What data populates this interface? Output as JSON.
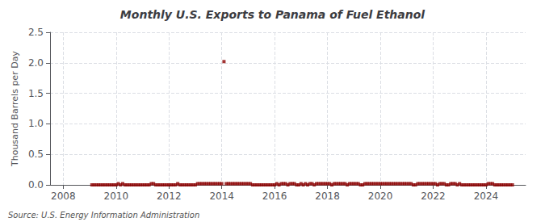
{
  "chart_data": {
    "type": "scatter",
    "title": "Monthly U.S. Exports to Panama of Fuel Ethanol",
    "ylabel": "Thousand Barrels per Day",
    "annotations": [
      "Source: U.S. Energy Information Administration"
    ],
    "color": "#8b0000",
    "marker": "square",
    "grid": true,
    "xlim": [
      2007.5,
      2025.5
    ],
    "xticks": [
      2008,
      2010,
      2012,
      2014,
      2016,
      2018,
      2020,
      2022,
      2024
    ],
    "ylim": [
      0,
      2.5
    ],
    "yticks": [
      {
        "value": 0.0,
        "label": "0.0"
      },
      0.5,
      {
        "value": 1.0,
        "label": "1.0"
      },
      1.5,
      {
        "value": 2.0,
        "label": "2.0"
      },
      2.5
    ],
    "x": [
      2009.083,
      2009.167,
      2009.25,
      2009.333,
      2009.417,
      2009.5,
      2009.583,
      2009.667,
      2009.75,
      2009.833,
      2009.917,
      2010.0,
      2010.083,
      2010.167,
      2010.25,
      2010.333,
      2010.417,
      2010.5,
      2010.583,
      2010.667,
      2010.75,
      2010.833,
      2010.917,
      2011.0,
      2011.083,
      2011.167,
      2011.25,
      2011.333,
      2011.417,
      2011.5,
      2011.583,
      2011.667,
      2011.75,
      2011.833,
      2011.917,
      2012.0,
      2012.083,
      2012.167,
      2012.25,
      2012.333,
      2012.417,
      2012.5,
      2012.583,
      2012.667,
      2012.75,
      2012.833,
      2012.917,
      2013.0,
      2013.083,
      2013.167,
      2013.25,
      2013.333,
      2013.417,
      2013.5,
      2013.583,
      2013.667,
      2013.75,
      2013.833,
      2013.917,
      2014.0,
      2014.083,
      2014.167,
      2014.25,
      2014.333,
      2014.417,
      2014.5,
      2014.583,
      2014.667,
      2014.75,
      2014.833,
      2014.917,
      2015.0,
      2015.083,
      2015.167,
      2015.25,
      2015.333,
      2015.417,
      2015.5,
      2015.583,
      2015.667,
      2015.75,
      2015.833,
      2015.917,
      2016.0,
      2016.083,
      2016.167,
      2016.25,
      2016.333,
      2016.417,
      2016.5,
      2016.583,
      2016.667,
      2016.75,
      2016.833,
      2016.917,
      2017.0,
      2017.083,
      2017.167,
      2017.25,
      2017.333,
      2017.417,
      2017.5,
      2017.583,
      2017.667,
      2017.75,
      2017.833,
      2017.917,
      2018.0,
      2018.083,
      2018.167,
      2018.25,
      2018.333,
      2018.417,
      2018.5,
      2018.583,
      2018.667,
      2018.75,
      2018.833,
      2018.917,
      2019.0,
      2019.083,
      2019.167,
      2019.25,
      2019.333,
      2019.417,
      2019.5,
      2019.583,
      2019.667,
      2019.75,
      2019.833,
      2019.917,
      2020.0,
      2020.083,
      2020.167,
      2020.25,
      2020.333,
      2020.417,
      2020.5,
      2020.583,
      2020.667,
      2020.75,
      2020.833,
      2020.917,
      2021.0,
      2021.083,
      2021.167,
      2021.25,
      2021.333,
      2021.417,
      2021.5,
      2021.583,
      2021.667,
      2021.75,
      2021.833,
      2021.917,
      2022.0,
      2022.083,
      2022.167,
      2022.25,
      2022.333,
      2022.417,
      2022.5,
      2022.583,
      2022.667,
      2022.75,
      2022.833,
      2022.917,
      2023.0,
      2023.083,
      2023.167,
      2023.25,
      2023.333,
      2023.417,
      2023.5,
      2023.583,
      2023.667,
      2023.75,
      2023.833,
      2023.917,
      2024.0,
      2024.083,
      2024.167,
      2024.25,
      2024.333,
      2024.417,
      2024.5,
      2024.583,
      2024.667,
      2024.75,
      2024.833,
      2024.917,
      2025.0
    ],
    "values": [
      0.0,
      0.0,
      0.0,
      0.0,
      0.0,
      0.0,
      0.0,
      0.0,
      0.0,
      0.0,
      0.0,
      0.0,
      0.02,
      0.0,
      0.02,
      0.0,
      0.0,
      0.0,
      0.0,
      0.0,
      0.0,
      0.0,
      0.0,
      0.0,
      0.0,
      0.0,
      0.0,
      0.02,
      0.02,
      0.0,
      0.0,
      0.0,
      0.0,
      0.0,
      0.0,
      0.0,
      0.0,
      0.0,
      0.0,
      0.02,
      0.0,
      0.0,
      0.0,
      0.0,
      0.0,
      0.0,
      0.0,
      0.0,
      0.02,
      0.02,
      0.02,
      0.02,
      0.02,
      0.02,
      0.02,
      0.02,
      0.02,
      0.02,
      0.02,
      0.02,
      2.02,
      0.02,
      0.02,
      0.02,
      0.02,
      0.02,
      0.02,
      0.02,
      0.02,
      0.02,
      0.02,
      0.02,
      0.02,
      0.0,
      0.0,
      0.0,
      0.0,
      0.0,
      0.0,
      0.0,
      0.0,
      0.0,
      0.0,
      0.0,
      0.02,
      0.0,
      0.02,
      0.02,
      0.02,
      0.0,
      0.02,
      0.02,
      0.02,
      0.0,
      0.0,
      0.02,
      0.0,
      0.02,
      0.0,
      0.02,
      0.02,
      0.0,
      0.02,
      0.02,
      0.02,
      0.02,
      0.02,
      0.02,
      0.02,
      0.0,
      0.02,
      0.02,
      0.02,
      0.02,
      0.02,
      0.02,
      0.0,
      0.02,
      0.02,
      0.02,
      0.02,
      0.02,
      0.0,
      0.0,
      0.02,
      0.02,
      0.02,
      0.02,
      0.02,
      0.02,
      0.02,
      0.02,
      0.02,
      0.02,
      0.02,
      0.02,
      0.02,
      0.02,
      0.02,
      0.02,
      0.02,
      0.02,
      0.02,
      0.02,
      0.02,
      0.02,
      0.0,
      0.0,
      0.02,
      0.02,
      0.02,
      0.02,
      0.02,
      0.02,
      0.02,
      0.02,
      0.02,
      0.0,
      0.02,
      0.02,
      0.02,
      0.0,
      0.0,
      0.02,
      0.02,
      0.02,
      0.0,
      0.02,
      0.0,
      0.0,
      0.0,
      0.0,
      0.0,
      0.0,
      0.0,
      0.0,
      0.0,
      0.0,
      0.0,
      0.0,
      0.02,
      0.02,
      0.02,
      0.0,
      0.0,
      0.0,
      0.0,
      0.0,
      0.0,
      0.0,
      0.0,
      0.0
    ]
  }
}
